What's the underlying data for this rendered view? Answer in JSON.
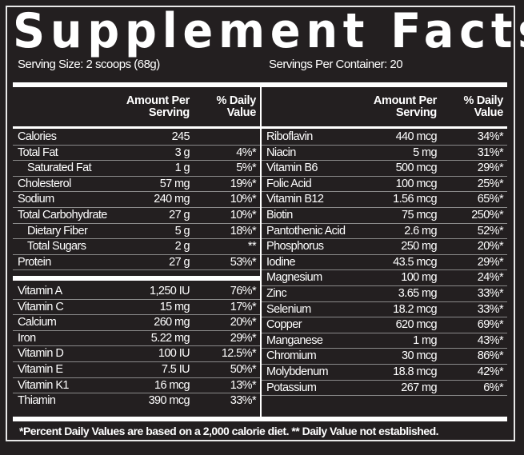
{
  "title": "Supplement Facts",
  "serving_size": "Serving Size: 2 scoops (68g)",
  "servings_per_container": "Servings Per Container: 20",
  "headers": {
    "amount_line1": "Amount Per",
    "amount_line2": "Serving",
    "dv_line1": "% Daily",
    "dv_line2": "Value"
  },
  "left_top": [
    {
      "name": "Calories",
      "amount": "245",
      "dv": "",
      "indent": false
    },
    {
      "name": "Total Fat",
      "amount": "3 g",
      "dv": "4%*",
      "indent": false
    },
    {
      "name": "Saturated Fat",
      "amount": "1 g",
      "dv": "5%*",
      "indent": true
    },
    {
      "name": "Cholesterol",
      "amount": "57 mg",
      "dv": "19%*",
      "indent": false
    },
    {
      "name": "Sodium",
      "amount": "240 mg",
      "dv": "10%*",
      "indent": false
    },
    {
      "name": "Total Carbohydrate",
      "amount": "27 g",
      "dv": "10%*",
      "indent": false
    },
    {
      "name": "Dietary Fiber",
      "amount": "5 g",
      "dv": "18%*",
      "indent": true
    },
    {
      "name": "Total Sugars",
      "amount": "2 g",
      "dv": "**",
      "indent": true
    },
    {
      "name": "Protein",
      "amount": "27 g",
      "dv": "53%*",
      "indent": false
    }
  ],
  "left_bottom": [
    {
      "name": "Vitamin A",
      "amount": "1,250 IU",
      "dv": "76%*"
    },
    {
      "name": "Vitamin C",
      "amount": "15 mg",
      "dv": "17%*"
    },
    {
      "name": "Calcium",
      "amount": "260 mg",
      "dv": "20%*"
    },
    {
      "name": "Iron",
      "amount": "5.22 mg",
      "dv": "29%*"
    },
    {
      "name": "Vitamin D",
      "amount": "100 IU",
      "dv": "12.5%*"
    },
    {
      "name": "Vitamin E",
      "amount": "7.5 IU",
      "dv": "50%*"
    },
    {
      "name": "Vitamin K1",
      "amount": "16 mcg",
      "dv": "13%*"
    },
    {
      "name": "Thiamin",
      "amount": "390 mcg",
      "dv": "33%*"
    }
  ],
  "right": [
    {
      "name": "Riboflavin",
      "amount": "440 mcg",
      "dv": "34%*"
    },
    {
      "name": "Niacin",
      "amount": "5 mg",
      "dv": "31%*"
    },
    {
      "name": "Vitamin B6",
      "amount": "500 mcg",
      "dv": "29%*"
    },
    {
      "name": "Folic Acid",
      "amount": "100 mcg",
      "dv": "25%*"
    },
    {
      "name": "Vitamin B12",
      "amount": "1.56 mcg",
      "dv": "65%*"
    },
    {
      "name": "Biotin",
      "amount": "75 mcg",
      "dv": "250%*"
    },
    {
      "name": "Pantothenic Acid",
      "amount": "2.6 mg",
      "dv": "52%*"
    },
    {
      "name": "Phosphorus",
      "amount": "250 mg",
      "dv": "20%*"
    },
    {
      "name": "Iodine",
      "amount": "43.5 mcg",
      "dv": "29%*"
    },
    {
      "name": "Magnesium",
      "amount": "100 mg",
      "dv": "24%*"
    },
    {
      "name": "Zinc",
      "amount": "3.65 mg",
      "dv": "33%*"
    },
    {
      "name": "Selenium",
      "amount": "18.2 mcg",
      "dv": "33%*"
    },
    {
      "name": "Copper",
      "amount": "620 mcg",
      "dv": "69%*"
    },
    {
      "name": "Manganese",
      "amount": "1 mg",
      "dv": "43%*"
    },
    {
      "name": "Chromium",
      "amount": "30 mcg",
      "dv": "86%*"
    },
    {
      "name": "Molybdenum",
      "amount": "18.8 mcg",
      "dv": "42%*"
    },
    {
      "name": "Potassium",
      "amount": "267 mg",
      "dv": "6%*"
    }
  ],
  "footnote": "*Percent Daily Values are based on a 2,000 calorie diet.   ** Daily Value not established."
}
